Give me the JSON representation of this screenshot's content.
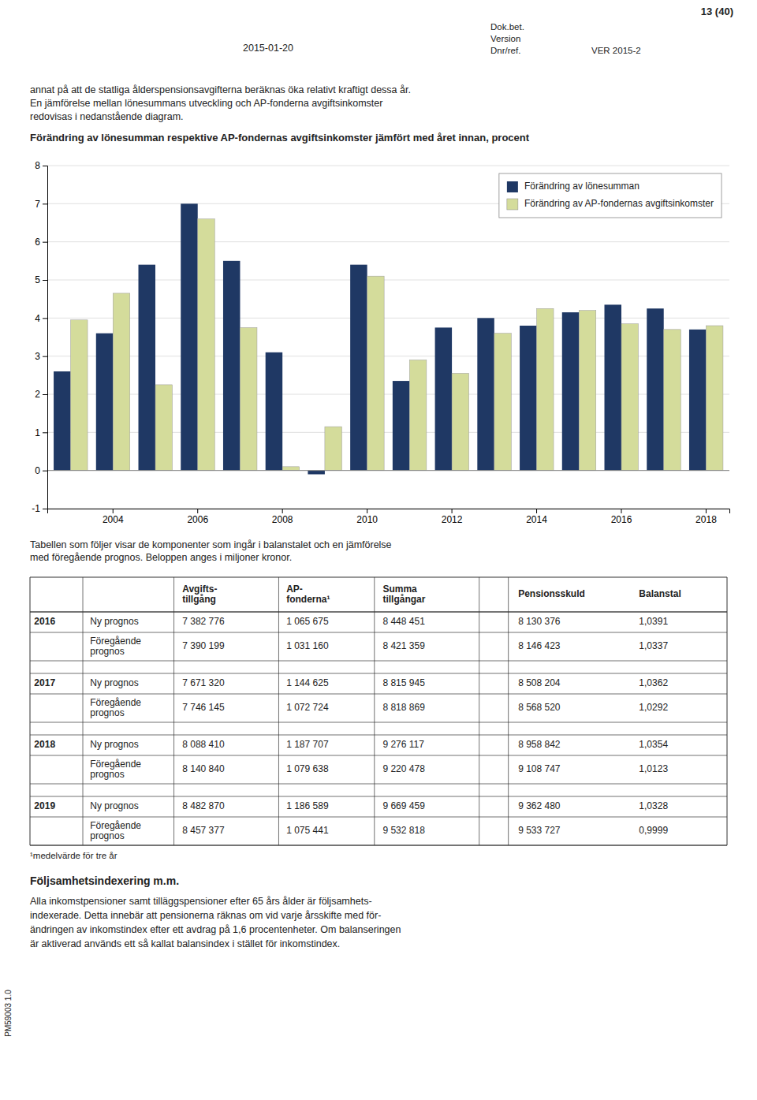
{
  "page_header": {
    "left": "2015-01-20",
    "page": "13 (40)",
    "labels": [
      "Dok.bet.",
      "Version",
      "Dnr/ref."
    ],
    "version": "VER 2015-2"
  },
  "intro": [
    "annat på att de statliga ålderspensionsavgifterna beräknas öka relativt kraftigt dessa år.",
    "En jämförelse mellan lönesummans utveckling och AP-fonderna avgiftsinkomster",
    "redovisas i nedanstående diagram."
  ],
  "chart_data": {
    "type": "bar",
    "title": "Förändring av lönesumman respektive AP-fondernas avgiftsinkomster jämfört med året innan, procent",
    "categories": [
      null,
      "2004",
      null,
      "2006",
      null,
      "2008",
      null,
      "2010",
      null,
      "2012",
      null,
      "2014",
      null,
      "2016",
      null,
      "2018"
    ],
    "series": [
      {
        "name": "Förändring av lönesumman",
        "color": "#1F3864",
        "values": [
          2.6,
          3.6,
          5.4,
          7.0,
          5.5,
          3.1,
          -0.1,
          5.4,
          2.35,
          3.75,
          4.0,
          3.8,
          4.15,
          4.35,
          4.25,
          3.7
        ]
      },
      {
        "name": "Förändring av AP-fondernas avgiftsinkomster",
        "color": "#D4DC9B",
        "values": [
          3.95,
          4.65,
          2.25,
          6.6,
          3.75,
          0.1,
          1.15,
          5.1,
          2.9,
          2.55,
          3.6,
          4.25,
          4.2,
          3.85,
          3.7,
          3.8
        ]
      }
    ],
    "ylim": [
      -1,
      8
    ],
    "yticks": [
      -1,
      0,
      1,
      2,
      3,
      4,
      5,
      6,
      7,
      8
    ],
    "grid": true,
    "legend": "top-right"
  },
  "caption": [
    "Tabellen som följer visar de komponenter som ingår i balanstalet och en jämförelse",
    "med föregående prognos. Beloppen anges i miljoner kronor."
  ],
  "table": {
    "columns": [
      "Avgifts-\ntillgång",
      "AP-\nfonderna¹",
      "Summa\ntillgångar",
      "Pensionsskuld",
      "Balanstal"
    ],
    "groups": [
      {
        "year": "2016",
        "rows": [
          {
            "label": "Ny prognos",
            "values": [
              "7 382 776",
              "1 065 675",
              "8 448 451",
              "8 130 376",
              "1,0391"
            ]
          },
          {
            "label": "Föregående\nprognos",
            "values": [
              "7 390 199",
              "1 031 160",
              "8 421 359",
              "8 146 423",
              "1,0337"
            ]
          }
        ]
      },
      {
        "year": "2017",
        "rows": [
          {
            "label": "Ny prognos",
            "values": [
              "7 671 320",
              "1 144 625",
              "8 815 945",
              "8 508 204",
              "1,0362"
            ]
          },
          {
            "label": "Föregående\nprognos",
            "values": [
              "7 746 145",
              "1 072 724",
              "8 818 869",
              "8 568 520",
              "1,0292"
            ]
          }
        ]
      },
      {
        "year": "2018",
        "rows": [
          {
            "label": "Ny prognos",
            "values": [
              "8 088 410",
              "1 187 707",
              "9 276 117",
              "8 958 842",
              "1,0354"
            ]
          },
          {
            "label": "Föregående\nprognos",
            "values": [
              "8 140 840",
              "1 079 638",
              "9 220 478",
              "9 108 747",
              "1,0123"
            ]
          }
        ]
      },
      {
        "year": "2019",
        "rows": [
          {
            "label": "Ny prognos",
            "values": [
              "8 482 870",
              "1 186 589",
              "9 669 459",
              "9 362 480",
              "1,0328"
            ]
          },
          {
            "label": "Föregående\nprognos",
            "values": [
              "8 457 377",
              "1 075 441",
              "9 532 818",
              "9 533 727",
              "0,9999"
            ]
          }
        ]
      }
    ]
  },
  "footnote": "¹medelvärde för tre år",
  "section_title": "Följsamhetsindexering m.m.",
  "section_text": [
    "Alla inkomstpensioner samt tilläggspensioner efter 65 års ålder är följsamhets-",
    "indexerade. Detta innebär att pensionerna räknas om vid varje årsskifte med för-",
    "ändringen av inkomstindex efter ett avdrag på 1,6 procentenheter. Om balanseringen",
    "är aktiverad används ett så kallat balansindex i stället för inkomstindex."
  ],
  "sidebar": "PM59003 1.0"
}
